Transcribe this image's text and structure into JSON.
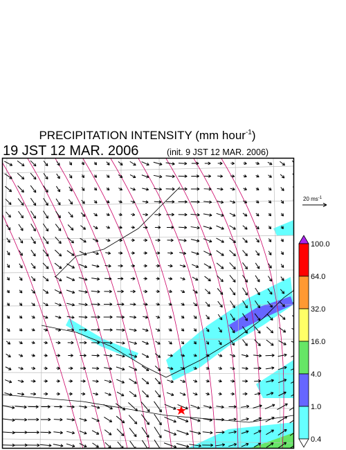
{
  "header": {
    "title": "PRECIPITATION INTENSITY (mm hour",
    "title_exponent": "-1",
    "title_close": ")",
    "valid_time": "19 JST 12 MAR. 2006",
    "init_time": "(init. 9 JST 12 MAR. 2006)"
  },
  "vector_legend": {
    "label": "20 ms",
    "exponent": "-1"
  },
  "colorbar": {
    "labels": [
      "100.0",
      "64.0",
      "32.0",
      "16.0",
      "4.0",
      "1.0",
      "0.4"
    ],
    "colors": [
      "#ff0000",
      "#ff9933",
      "#ffff66",
      "#66e666",
      "#6666ff",
      "#66ffff"
    ],
    "over_color": "#aa22ee",
    "under_color": "#ffffff"
  }
}
